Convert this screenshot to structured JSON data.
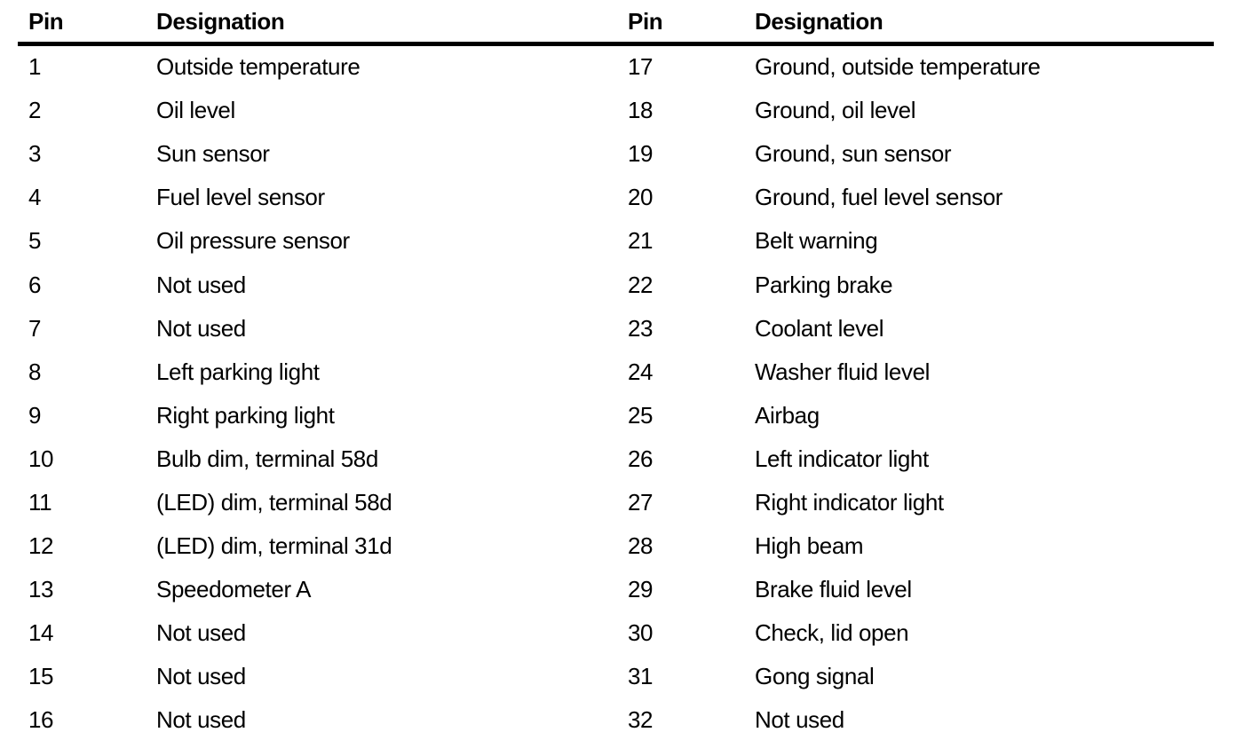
{
  "document": {
    "type": "pin-designation-table",
    "columns": [
      {
        "header": {
          "pin": "Pin",
          "designation": "Designation"
        },
        "rows": [
          {
            "pin": "1",
            "designation": "Outside temperature"
          },
          {
            "pin": "2",
            "designation": "Oil level"
          },
          {
            "pin": "3",
            "designation": "Sun sensor"
          },
          {
            "pin": "4",
            "designation": "Fuel level sensor"
          },
          {
            "pin": "5",
            "designation": "Oil pressure sensor"
          },
          {
            "pin": "6",
            "designation": "Not used"
          },
          {
            "pin": "7",
            "designation": "Not used"
          },
          {
            "pin": "8",
            "designation": "Left parking light"
          },
          {
            "pin": "9",
            "designation": "Right parking light"
          },
          {
            "pin": "10",
            "designation": "Bulb dim, terminal 58d"
          },
          {
            "pin": "11",
            "designation": "(LED) dim, terminal 58d"
          },
          {
            "pin": "12",
            "designation": "(LED) dim, terminal 31d"
          },
          {
            "pin": "13",
            "designation": "Speedometer A"
          },
          {
            "pin": "14",
            "designation": "Not used"
          },
          {
            "pin": "15",
            "designation": "Not used"
          },
          {
            "pin": "16",
            "designation": "Not used"
          }
        ]
      },
      {
        "header": {
          "pin": "Pin",
          "designation": "Designation"
        },
        "rows": [
          {
            "pin": "17",
            "designation": "Ground, outside temperature"
          },
          {
            "pin": "18",
            "designation": "Ground, oil level"
          },
          {
            "pin": "19",
            "designation": "Ground, sun sensor"
          },
          {
            "pin": "20",
            "designation": "Ground, fuel level sensor"
          },
          {
            "pin": "21",
            "designation": "Belt warning"
          },
          {
            "pin": "22",
            "designation": "Parking brake"
          },
          {
            "pin": "23",
            "designation": "Coolant level"
          },
          {
            "pin": "24",
            "designation": "Washer fluid level"
          },
          {
            "pin": "25",
            "designation": "Airbag"
          },
          {
            "pin": "26",
            "designation": "Left indicator light"
          },
          {
            "pin": "27",
            "designation": "Right indicator light"
          },
          {
            "pin": "28",
            "designation": "High beam"
          },
          {
            "pin": "29",
            "designation": "Brake fluid level"
          },
          {
            "pin": "30",
            "designation": "Check, lid open"
          },
          {
            "pin": "31",
            "designation": "Gong signal"
          },
          {
            "pin": "32",
            "designation": "Not used"
          }
        ]
      }
    ]
  },
  "colors": {
    "text": "#000000",
    "background": "#ffffff",
    "rule": "#000000"
  }
}
